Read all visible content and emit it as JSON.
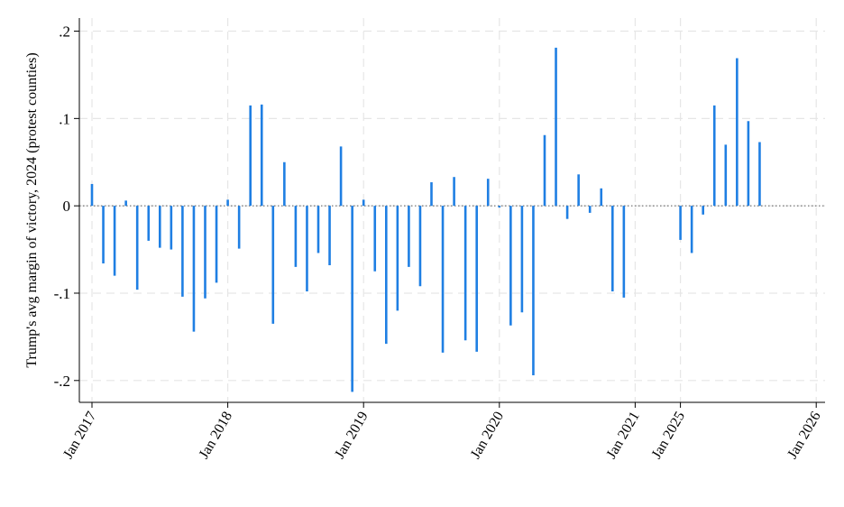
{
  "chart_data": {
    "type": "bar",
    "title": "",
    "xlabel": "",
    "ylabel": "Trump's avg margin of victory, 2024 (protest counties)",
    "ylim": [
      -0.225,
      0.215
    ],
    "yticks": [
      {
        "value": 0.2,
        "label": ".2"
      },
      {
        "value": 0.1,
        "label": ".1"
      },
      {
        "value": 0,
        "label": "0"
      },
      {
        "value": -0.1,
        "label": "-.1"
      },
      {
        "value": -0.2,
        "label": "-.2"
      }
    ],
    "xticks": [
      {
        "slot": 0,
        "label": "Jan 2017"
      },
      {
        "slot": 12,
        "label": "Jan 2018"
      },
      {
        "slot": 24,
        "label": "Jan 2019"
      },
      {
        "slot": 36,
        "label": "Jan 2020"
      },
      {
        "slot": 48,
        "label": "Jan 2021"
      },
      {
        "slot": 52,
        "label": "Jan 2025"
      },
      {
        "slot": 64,
        "label": "Jan 2026"
      }
    ],
    "xlim": [
      -0.2,
      64.5
    ],
    "series": [
      {
        "color": "#1f7fe3",
        "zero_line": "dotted",
        "points": [
          {
            "slot": 0,
            "month": "Jan 2017",
            "value": 0.025
          },
          {
            "slot": 1,
            "month": "Feb 2017",
            "value": -0.066
          },
          {
            "slot": 2,
            "month": "Mar 2017",
            "value": -0.08
          },
          {
            "slot": 3,
            "month": "Apr 2017",
            "value": 0.006
          },
          {
            "slot": 4,
            "month": "May 2017",
            "value": -0.096
          },
          {
            "slot": 5,
            "month": "Jun 2017",
            "value": -0.04
          },
          {
            "slot": 6,
            "month": "Jul 2017",
            "value": -0.048
          },
          {
            "slot": 7,
            "month": "Aug 2017",
            "value": -0.05
          },
          {
            "slot": 8,
            "month": "Sep 2017",
            "value": -0.104
          },
          {
            "slot": 9,
            "month": "Oct 2017",
            "value": -0.144
          },
          {
            "slot": 10,
            "month": "Nov 2017",
            "value": -0.106
          },
          {
            "slot": 11,
            "month": "Dec 2017",
            "value": -0.088
          },
          {
            "slot": 12,
            "month": "Jan 2018",
            "value": 0.007
          },
          {
            "slot": 13,
            "month": "Feb 2018",
            "value": -0.049
          },
          {
            "slot": 14,
            "month": "Mar 2018",
            "value": 0.115
          },
          {
            "slot": 15,
            "month": "Apr 2018",
            "value": 0.116
          },
          {
            "slot": 16,
            "month": "May 2018",
            "value": -0.135
          },
          {
            "slot": 17,
            "month": "Jun 2018",
            "value": 0.05
          },
          {
            "slot": 18,
            "month": "Jul 2018",
            "value": -0.07
          },
          {
            "slot": 19,
            "month": "Aug 2018",
            "value": -0.098
          },
          {
            "slot": 20,
            "month": "Sep 2018",
            "value": -0.054
          },
          {
            "slot": 21,
            "month": "Oct 2018",
            "value": -0.068
          },
          {
            "slot": 22,
            "month": "Nov 2018",
            "value": 0.068
          },
          {
            "slot": 23,
            "month": "Dec 2018",
            "value": -0.213
          },
          {
            "slot": 24,
            "month": "Jan 2019",
            "value": 0.007
          },
          {
            "slot": 25,
            "month": "Feb 2019",
            "value": -0.075
          },
          {
            "slot": 26,
            "month": "Mar 2019",
            "value": -0.158
          },
          {
            "slot": 27,
            "month": "Apr 2019",
            "value": -0.12
          },
          {
            "slot": 28,
            "month": "May 2019",
            "value": -0.07
          },
          {
            "slot": 29,
            "month": "Jun 2019",
            "value": -0.092
          },
          {
            "slot": 30,
            "month": "Jul 2019",
            "value": 0.027
          },
          {
            "slot": 31,
            "month": "Aug 2019",
            "value": -0.168
          },
          {
            "slot": 32,
            "month": "Sep 2019",
            "value": 0.033
          },
          {
            "slot": 33,
            "month": "Oct 2019",
            "value": -0.154
          },
          {
            "slot": 34,
            "month": "Nov 2019",
            "value": -0.167
          },
          {
            "slot": 35,
            "month": "Dec 2019",
            "value": 0.031
          },
          {
            "slot": 36,
            "month": "Jan 2020",
            "value": -0.002
          },
          {
            "slot": 37,
            "month": "Feb 2020",
            "value": -0.137
          },
          {
            "slot": 38,
            "month": "Mar 2020",
            "value": -0.122
          },
          {
            "slot": 39,
            "month": "Apr 2020",
            "value": -0.194
          },
          {
            "slot": 40,
            "month": "May 2020",
            "value": 0.081
          },
          {
            "slot": 41,
            "month": "Jun 2020",
            "value": 0.181
          },
          {
            "slot": 42,
            "month": "Jul 2020",
            "value": -0.015
          },
          {
            "slot": 43,
            "month": "Aug 2020",
            "value": 0.036
          },
          {
            "slot": 44,
            "month": "Sep 2020",
            "value": -0.008
          },
          {
            "slot": 45,
            "month": "Oct 2020",
            "value": 0.02
          },
          {
            "slot": 46,
            "month": "Nov 2020",
            "value": -0.098
          },
          {
            "slot": 47,
            "month": "Dec 2020",
            "value": -0.105
          },
          {
            "slot": 52,
            "month": "Jan 2025",
            "value": -0.039
          },
          {
            "slot": 53,
            "month": "Feb 2025",
            "value": -0.054
          },
          {
            "slot": 54,
            "month": "Mar 2025",
            "value": -0.01
          },
          {
            "slot": 55,
            "month": "Apr 2025",
            "value": 0.115
          },
          {
            "slot": 56,
            "month": "May 2025",
            "value": 0.07
          },
          {
            "slot": 57,
            "month": "Jun 2025",
            "value": 0.169
          },
          {
            "slot": 58,
            "month": "Jul 2025",
            "value": 0.097
          },
          {
            "slot": 59,
            "month": "Aug 2025",
            "value": 0.073
          }
        ]
      }
    ],
    "grid": true,
    "legend": "none"
  }
}
